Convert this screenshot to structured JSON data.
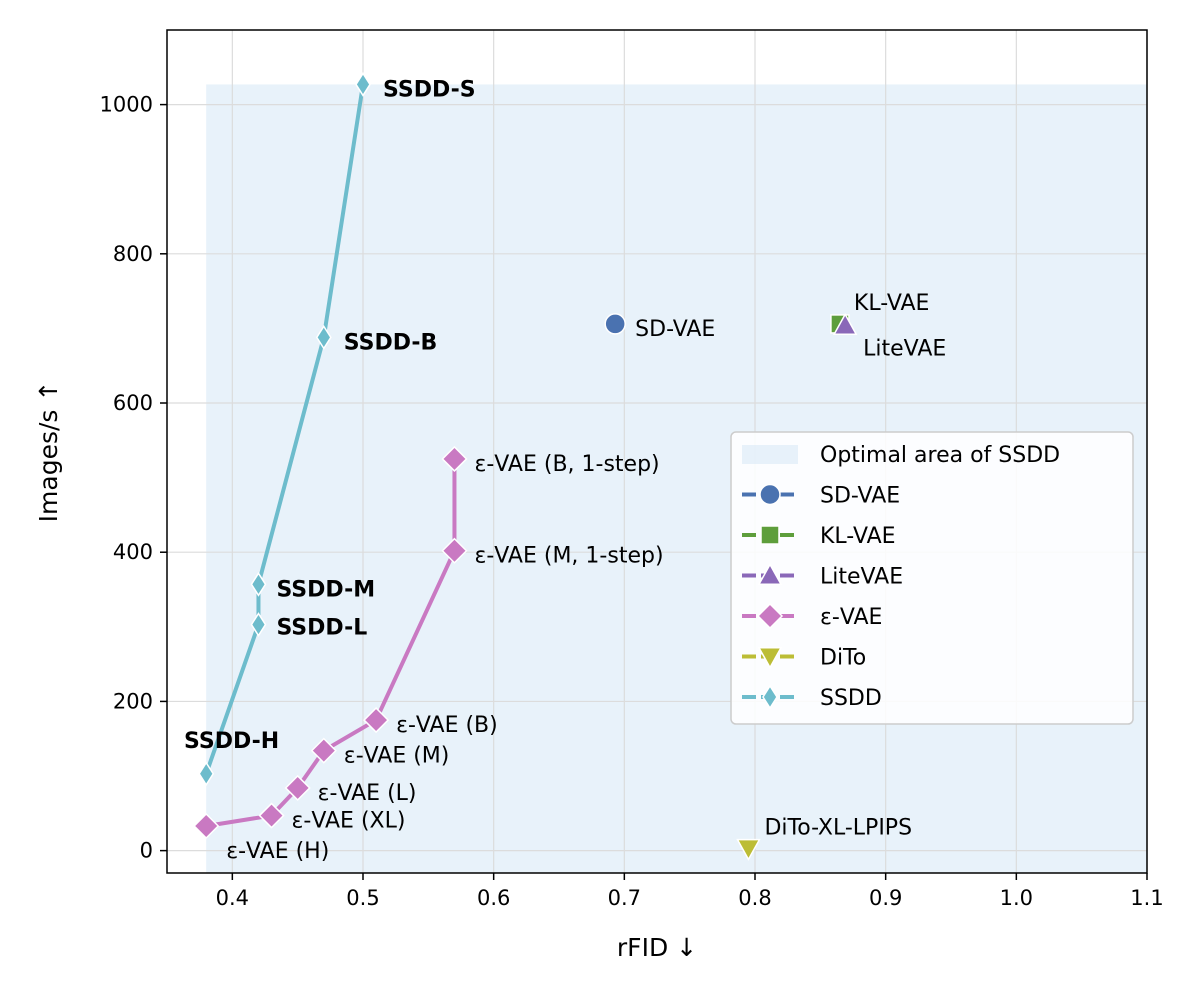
{
  "chart_data": {
    "type": "line",
    "xlabel": "rFID ↓",
    "ylabel": "Images/s ↑",
    "xlim": [
      0.35,
      1.1
    ],
    "ylim": [
      -30,
      1100
    ],
    "xticks": [
      0.4,
      0.5,
      0.6,
      0.7,
      0.8,
      0.9,
      1.0,
      1.1
    ],
    "xtick_labels": [
      "0.4",
      "0.5",
      "0.6",
      "0.7",
      "0.8",
      "0.9",
      "1.0",
      "1.1"
    ],
    "yticks": [
      0,
      200,
      400,
      600,
      800,
      1000
    ],
    "ytick_labels": [
      "0",
      "200",
      "400",
      "600",
      "800",
      "1000"
    ],
    "grid": true,
    "legend_position": "right",
    "optimal_area": {
      "name": "Optimal area of SSDD",
      "x": [
        0.38,
        1.1
      ],
      "y": [
        0,
        1027
      ],
      "color": "#d6e7f5"
    },
    "series": [
      {
        "name": "SD-VAE",
        "color": "#4a72b0",
        "marker": "circle",
        "points": [
          {
            "x": 0.693,
            "y": 706,
            "label": "SD-VAE"
          }
        ]
      },
      {
        "name": "KL-VAE",
        "color": "#5e9e3c",
        "marker": "square",
        "points": [
          {
            "x": 0.865,
            "y": 706,
            "label": "KL-VAE"
          }
        ]
      },
      {
        "name": "LiteVAE",
        "color": "#8a68b8",
        "marker": "triangle-up",
        "points": [
          {
            "x": 0.869,
            "y": 704,
            "label": "LiteVAE"
          }
        ]
      },
      {
        "name": "ε-VAE",
        "color": "#c979c2",
        "marker": "diamond",
        "points": [
          {
            "x": 0.38,
            "y": 33,
            "label": "ε-VAE (H)"
          },
          {
            "x": 0.43,
            "y": 47,
            "label": "ε-VAE (XL)"
          },
          {
            "x": 0.45,
            "y": 84,
            "label": "ε-VAE (L)"
          },
          {
            "x": 0.47,
            "y": 134,
            "label": "ε-VAE (M)"
          },
          {
            "x": 0.51,
            "y": 175,
            "label": "ε-VAE (B)"
          },
          {
            "x": 0.57,
            "y": 402,
            "label": "ε-VAE (M, 1-step)"
          },
          {
            "x": 0.57,
            "y": 525,
            "label": "ε-VAE (B, 1-step)"
          }
        ]
      },
      {
        "name": "DiTo",
        "color": "#bcbd36",
        "marker": "triangle-down",
        "points": [
          {
            "x": 0.795,
            "y": 3,
            "label": "DiTo-XL-LPIPS"
          }
        ]
      },
      {
        "name": "SSDD",
        "color": "#6dbccc",
        "marker": "thin-diamond",
        "points": [
          {
            "x": 0.38,
            "y": 103,
            "label": "SSDD-H"
          },
          {
            "x": 0.42,
            "y": 303,
            "label": "SSDD-L"
          },
          {
            "x": 0.42,
            "y": 357,
            "label": "SSDD-M"
          },
          {
            "x": 0.47,
            "y": 688,
            "label": "SSDD-B"
          },
          {
            "x": 0.5,
            "y": 1027,
            "label": "SSDD-S"
          }
        ]
      }
    ]
  }
}
